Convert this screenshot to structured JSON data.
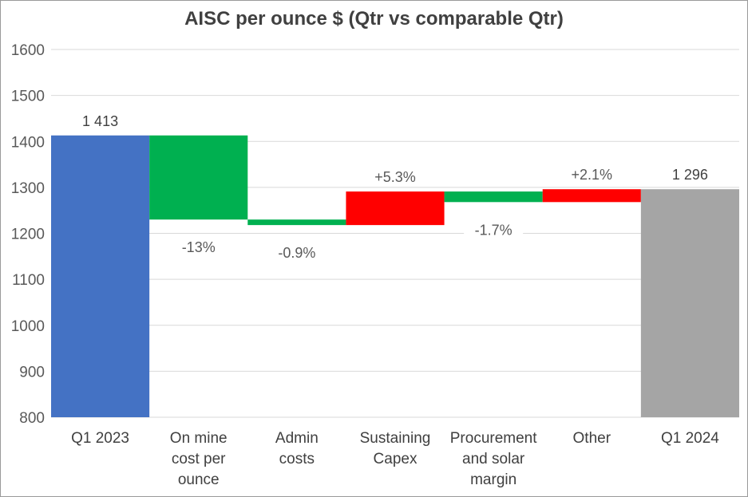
{
  "chart_data": {
    "type": "waterfall",
    "title": "AISC per ounce $  (Qtr vs comparable Qtr)",
    "xlabel": "",
    "ylabel": "",
    "ylim": [
      800,
      1600
    ],
    "yticks": [
      "800",
      "900",
      "1000",
      "1100",
      "1200",
      "1300",
      "1400",
      "1500",
      "1600"
    ],
    "grid": true,
    "legend": "none",
    "categories": [
      [
        "Q1 2023"
      ],
      [
        "On mine",
        "cost per",
        "ounce"
      ],
      [
        "Admin",
        "costs"
      ],
      [
        "Sustaining",
        "Capex"
      ],
      [
        "Procurement",
        "and solar",
        "margin"
      ],
      [
        "Other"
      ],
      [
        "Q1 2024"
      ]
    ],
    "steps": [
      {
        "kind": "total",
        "start": 800,
        "end": 1413,
        "label": "1 413",
        "color": "#4472c4"
      },
      {
        "kind": "decrease",
        "start": 1413,
        "end": 1230,
        "label": "-13%",
        "color": "#00b050"
      },
      {
        "kind": "decrease",
        "start": 1230,
        "end": 1218,
        "label": "-0.9%",
        "color": "#00b050"
      },
      {
        "kind": "increase",
        "start": 1218,
        "end": 1291,
        "label": "+5.3%",
        "color": "#ff0000"
      },
      {
        "kind": "decrease",
        "start": 1291,
        "end": 1268,
        "label": "-1.7%",
        "color": "#00b050"
      },
      {
        "kind": "increase",
        "start": 1268,
        "end": 1296,
        "label": "+2.1%",
        "color": "#ff0000"
      },
      {
        "kind": "total",
        "start": 800,
        "end": 1296,
        "label": "1 296",
        "color": "#a5a5a5"
      }
    ]
  }
}
